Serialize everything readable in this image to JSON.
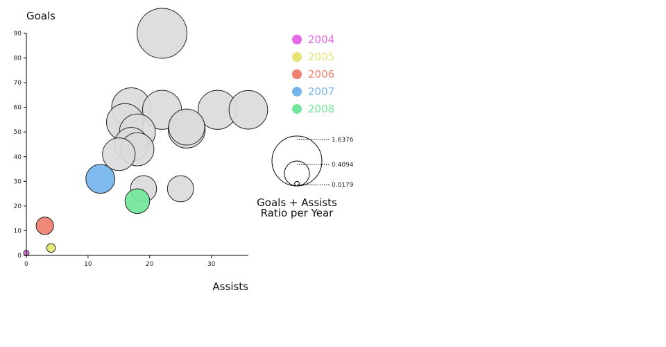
{
  "chart_data": {
    "type": "scatter",
    "xlabel": "Assists",
    "ylabel": "Goals",
    "xlim": [
      0,
      36
    ],
    "ylim": [
      0,
      90
    ],
    "x_ticks": [
      0,
      10,
      20,
      30
    ],
    "y_ticks": [
      0,
      10,
      20,
      30,
      40,
      50,
      60,
      70,
      80,
      90
    ],
    "size_legend": {
      "title_line1": "Goals + Assists",
      "title_line2": "Ratio per Year",
      "values": [
        1.6376,
        0.4094,
        0.0179
      ],
      "labels": [
        "1.6376",
        "0.4094",
        "0.0179"
      ]
    },
    "highlight_series": [
      {
        "name": "2004",
        "color": "#e767e6",
        "points": [
          {
            "x": 0,
            "y": 1,
            "ratio": 0.02
          }
        ]
      },
      {
        "name": "2005",
        "color": "#e6e571",
        "points": [
          {
            "x": 4,
            "y": 3,
            "ratio": 0.05
          }
        ]
      },
      {
        "name": "2006",
        "color": "#ee8070",
        "points": [
          {
            "x": 3,
            "y": 12,
            "ratio": 0.2
          }
        ]
      },
      {
        "name": "2007",
        "color": "#74b5ee",
        "points": [
          {
            "x": 12,
            "y": 31,
            "ratio": 0.55
          }
        ]
      },
      {
        "name": "2008",
        "color": "#72e69a",
        "points": [
          {
            "x": 18,
            "y": 22,
            "ratio": 0.4
          }
        ]
      }
    ],
    "other_points_color": "#dcdadc",
    "other_points": [
      {
        "x": 22,
        "y": 90,
        "ratio": 1.6376
      },
      {
        "x": 17,
        "y": 60,
        "ratio": 1.0
      },
      {
        "x": 22,
        "y": 59,
        "ratio": 1.0
      },
      {
        "x": 26,
        "y": 52,
        "ratio": 0.85
      },
      {
        "x": 31,
        "y": 59,
        "ratio": 1.0
      },
      {
        "x": 36,
        "y": 59,
        "ratio": 0.98
      },
      {
        "x": 16,
        "y": 54,
        "ratio": 0.9
      },
      {
        "x": 18,
        "y": 50,
        "ratio": 0.85
      },
      {
        "x": 26,
        "y": 51,
        "ratio": 0.9
      },
      {
        "x": 15,
        "y": 41,
        "ratio": 0.7
      },
      {
        "x": 17,
        "y": 45,
        "ratio": 0.75
      },
      {
        "x": 18,
        "y": 43,
        "ratio": 0.72
      },
      {
        "x": 19,
        "y": 27,
        "ratio": 0.45
      },
      {
        "x": 25,
        "y": 27,
        "ratio": 0.45
      }
    ]
  }
}
